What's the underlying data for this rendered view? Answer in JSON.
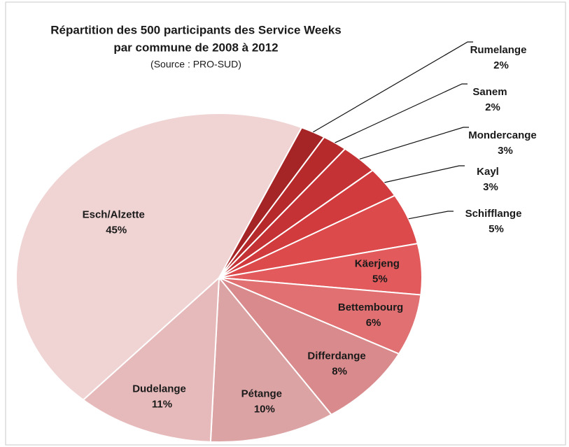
{
  "chart_data": {
    "type": "pie",
    "title": [
      "Répartition des 500 participants des Service Weeks",
      "par commune de 2008 à 2012"
    ],
    "subtitle": "(Source : PRO-SUD)",
    "categories": [
      "Rumelange",
      "Sanem",
      "Mondercange",
      "Kayl",
      "Schifflange",
      "Käerjeng",
      "Bettembourg",
      "Differdange",
      "Pétange",
      "Dudelange",
      "Esch/Alzette"
    ],
    "values": [
      2,
      2,
      3,
      3,
      5,
      5,
      6,
      8,
      10,
      11,
      45
    ],
    "value_labels": [
      "2%",
      "2%",
      "3%",
      "3%",
      "5%",
      "5%",
      "6%",
      "8%",
      "10%",
      "11%",
      "45%"
    ],
    "colors": [
      "#a52426",
      "#b72a2c",
      "#c43235",
      "#d23b3e",
      "#dc4a4c",
      "#e25a5c",
      "#e07072",
      "#d98a8c",
      "#dca3a4",
      "#e6baba",
      "#f0d3d3"
    ]
  }
}
